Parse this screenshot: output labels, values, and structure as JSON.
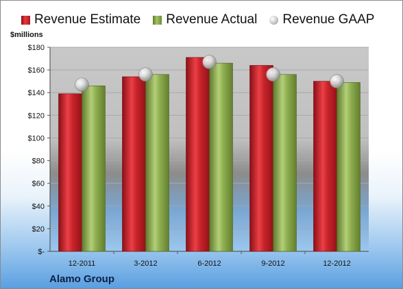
{
  "legend": {
    "estimate": "Revenue Estimate",
    "actual": "Revenue Actual",
    "gaap": "Revenue GAAP"
  },
  "units_label": "$millions",
  "company": "Alamo Group",
  "colors": {
    "estimate": "#c8242b",
    "actual": "#8fae50",
    "gaap": "#c0c0c0",
    "plot_top": "#c8c8c8",
    "plot_bottom": "#9cc7ee"
  },
  "chart_data": {
    "type": "bar",
    "categories": [
      "12-2011",
      "3-2012",
      "6-2012",
      "9-2012",
      "12-2012"
    ],
    "series": [
      {
        "name": "Revenue Estimate",
        "type": "bar",
        "values": [
          139,
          154,
          171,
          164,
          150
        ]
      },
      {
        "name": "Revenue Actual",
        "type": "bar",
        "values": [
          146,
          156,
          166,
          156,
          149
        ]
      },
      {
        "name": "Revenue GAAP",
        "type": "scatter",
        "values": [
          147,
          156,
          167,
          156,
          150
        ]
      }
    ],
    "ylim": [
      0,
      180
    ],
    "yticks": [
      0,
      20,
      40,
      60,
      80,
      100,
      120,
      140,
      160,
      180
    ],
    "ytick_labels": [
      "$-",
      "$20",
      "$40",
      "$60",
      "$80",
      "$100",
      "$120",
      "$140",
      "$160",
      "$180"
    ],
    "ylabel": "$millions",
    "grid": true,
    "legend_position": "top"
  }
}
